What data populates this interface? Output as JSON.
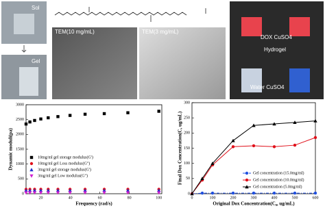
{
  "panels": {
    "sol": "Sol",
    "gel": "Gel",
    "tem1": "TEM(10 mg/mL)",
    "tem2": "TEM(3 mg/mL)",
    "dox": "DOX CuSO4",
    "hydrogel": "Hydrogel",
    "water": "Water CuSO4"
  },
  "chart_data": [
    {
      "type": "scatter",
      "xlabel": "Frequency (rad/s)",
      "ylabel": "Dynamic moduli(pa)",
      "x": [
        10,
        12.6,
        15.8,
        20,
        25,
        31.6,
        39.8,
        50,
        63,
        79,
        100
      ],
      "xlim": [
        10,
        102
      ],
      "xticks": [
        20,
        40,
        60,
        80,
        100
      ],
      "ylim": [
        0,
        3000
      ],
      "yticks": [
        0,
        500,
        1000,
        1500,
        2000,
        2500,
        3000
      ],
      "legend": "center left",
      "series": [
        {
          "name": "10mg/ml gel storage modulus(G')",
          "color": "#000000",
          "marker": "square",
          "values": [
            2350,
            2420,
            2470,
            2520,
            2560,
            2600,
            2640,
            2680,
            2700,
            2730,
            2780
          ]
        },
        {
          "name": "10mg/ml gel Loss modulus(G\")",
          "color": "#e0101a",
          "marker": "circle",
          "values": [
            150,
            150,
            150,
            150,
            150,
            150,
            150,
            150,
            150,
            150,
            150
          ]
        },
        {
          "name": "3mg/ml gel storage modulus(G')",
          "color": "#2030d0",
          "marker": "triangle",
          "values": [
            110,
            110,
            110,
            110,
            110,
            110,
            110,
            110,
            110,
            110,
            110
          ]
        },
        {
          "name": "3mg/ml gel Low modulus(G\")",
          "color": "#d020d0",
          "marker": "triangle-down",
          "values": [
            30,
            30,
            30,
            30,
            30,
            30,
            30,
            30,
            30,
            30,
            30
          ]
        }
      ]
    },
    {
      "type": "line",
      "xlabel": "Original Dox Concentration(C₀, ug/mL)",
      "ylabel": "Final Dox Concentration(C, ug/mL)",
      "x": [
        0,
        50,
        100,
        200,
        300,
        400,
        500,
        600
      ],
      "xlim": [
        0,
        600
      ],
      "xticks": [
        0,
        100,
        200,
        300,
        400,
        500,
        600
      ],
      "ylim": [
        0,
        300
      ],
      "yticks": [
        0,
        50,
        100,
        150,
        200,
        250,
        300
      ],
      "legend": "lower right",
      "series": [
        {
          "name": "Gel concentration (15.0mg/ml)",
          "color": "#2050e0",
          "marker": "circle",
          "dash": "4 2 1 2",
          "values": [
            0,
            2,
            2,
            2,
            2,
            2,
            2,
            2
          ]
        },
        {
          "name": "Gel concentration (10.0mg/ml)",
          "color": "#e0101a",
          "marker": "circle",
          "values": [
            0,
            45,
            95,
            155,
            158,
            155,
            160,
            185
          ]
        },
        {
          "name": "Gel concentration (5.0mg/ml)",
          "color": "#000000",
          "marker": "triangle",
          "values": [
            0,
            50,
            100,
            175,
            225,
            230,
            235,
            240
          ]
        }
      ]
    }
  ]
}
